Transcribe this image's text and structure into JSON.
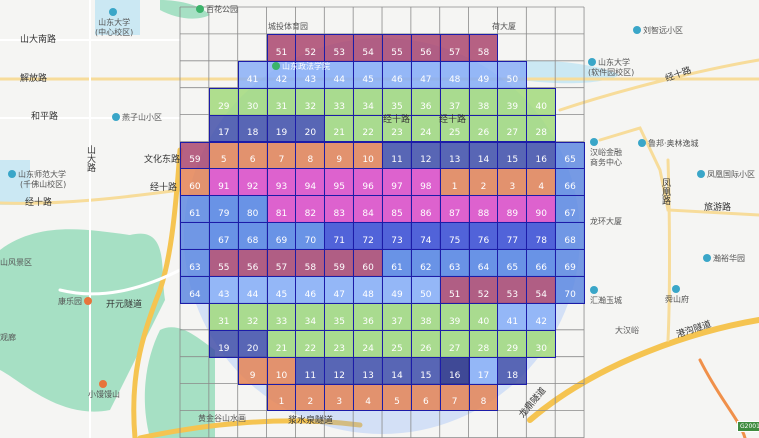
{
  "map_labels": {
    "baihua_park": "百花公园",
    "sdu_central": "山东大学",
    "sdu_central_sub": "(中心校区)",
    "shanda_south_rd": "山大南路",
    "jiefang_rd": "解放路",
    "heping_rd": "和平路",
    "yanzishan": "燕子山小区",
    "shanda_rd": "山大路",
    "wenhua_east_rd": "文化东路",
    "sdnu": "山东师范大学",
    "sdnu_sub": "(千佛山校区)",
    "jingshi_rd": "经十路",
    "scenic": "山风景区",
    "kangle": "康乐园",
    "kaiyuan_tunnel": "开元隧道",
    "guanlang": "观廊",
    "xiaomantou": "小馒馒山",
    "huangjingu": "黄金谷山水画",
    "chengtou": "城投体育园",
    "hehe": "荷大厦",
    "sdu_software": "山东大学",
    "sdu_software_sub": "(软件园校区)",
    "liuzhiyuan": "刘智远小区",
    "lubang": "鲁邦·奥林逸城",
    "hanyu_finance": "汉峪金融",
    "hanyu_finance_sub": "商务中心",
    "fenghuang_intl": "凤凰国际小区",
    "fenghuang_rd": "凤凰路",
    "lvyou_rd": "旅游路",
    "longhuan": "龙环大厦",
    "hanyu_garden": "瀚裕华园",
    "shunshanfu": "舜山府",
    "huihan": "汇瀚玉城",
    "dahanyu": "大汉峪",
    "ganggou_tunnel": "港沟隧道",
    "longding_tunnel": "龙鼎隧道",
    "jiangshuiquan_tunnel": "浆水泉隧道",
    "zhengfa": "山东政法学院",
    "highway_badge": "G2001"
  },
  "colors": {
    "R": "#a8406a",
    "L": "#86adf7",
    "G": "#9fd977",
    "D": "#3c4aa6",
    "O": "#e57f4e",
    "M": "#df45c4",
    "B": "#5181e2",
    "V": "#3446d2",
    "N": "#1d2680",
    "S": "#5a86e0"
  },
  "grid": {
    "columns": 14,
    "rows": [
      [],
      [
        null,
        null,
        null,
        [
          "R",
          "51"
        ],
        [
          "R",
          "52"
        ],
        [
          "R",
          "53"
        ],
        [
          "R",
          "54"
        ],
        [
          "R",
          "55"
        ],
        [
          "R",
          "56"
        ],
        [
          "R",
          "57"
        ],
        [
          "R",
          "58"
        ]
      ],
      [
        null,
        null,
        [
          "L",
          "41"
        ],
        [
          "L",
          "42"
        ],
        [
          "L",
          "43"
        ],
        [
          "L",
          "44"
        ],
        [
          "L",
          "45"
        ],
        [
          "L",
          "46"
        ],
        [
          "L",
          "47"
        ],
        [
          "L",
          "48"
        ],
        [
          "L",
          "49"
        ],
        [
          "L",
          "50"
        ]
      ],
      [
        null,
        [
          "G",
          "29"
        ],
        [
          "G",
          "30"
        ],
        [
          "G",
          "31"
        ],
        [
          "G",
          "32"
        ],
        [
          "G",
          "33"
        ],
        [
          "G",
          "34"
        ],
        [
          "G",
          "35"
        ],
        [
          "G",
          "36"
        ],
        [
          "G",
          "37"
        ],
        [
          "G",
          "38"
        ],
        [
          "G",
          "39"
        ],
        [
          "G",
          "40"
        ]
      ],
      [
        null,
        [
          "D",
          "17"
        ],
        [
          "D",
          "18"
        ],
        [
          "D",
          "19"
        ],
        [
          "D",
          "20"
        ],
        [
          "G",
          "21"
        ],
        [
          "G",
          "22"
        ],
        [
          "G",
          "23"
        ],
        [
          "G",
          "24"
        ],
        [
          "G",
          "25"
        ],
        [
          "G",
          "26"
        ],
        [
          "G",
          "27"
        ],
        [
          "G",
          "28"
        ]
      ],
      [
        [
          "R",
          "59"
        ],
        [
          "O",
          "5"
        ],
        [
          "O",
          "6"
        ],
        [
          "O",
          "7"
        ],
        [
          "O",
          "8"
        ],
        [
          "O",
          "9"
        ],
        [
          "O",
          "10"
        ],
        [
          "D",
          "11"
        ],
        [
          "D",
          "12"
        ],
        [
          "D",
          "13"
        ],
        [
          "D",
          "14"
        ],
        [
          "D",
          "15"
        ],
        [
          "D",
          "16"
        ],
        [
          "S",
          "65"
        ]
      ],
      [
        [
          "O",
          "60"
        ],
        [
          "M",
          "91"
        ],
        [
          "M",
          "92"
        ],
        [
          "M",
          "93"
        ],
        [
          "M",
          "94"
        ],
        [
          "M",
          "95"
        ],
        [
          "M",
          "96"
        ],
        [
          "M",
          "97"
        ],
        [
          "M",
          "98"
        ],
        [
          "O",
          "1"
        ],
        [
          "O",
          "2"
        ],
        [
          "O",
          "3"
        ],
        [
          "O",
          "4"
        ],
        [
          "S",
          "66"
        ]
      ],
      [
        [
          "S",
          "61"
        ],
        [
          "B",
          "79"
        ],
        [
          "B",
          "80"
        ],
        [
          "M",
          "81"
        ],
        [
          "M",
          "82"
        ],
        [
          "M",
          "83"
        ],
        [
          "M",
          "84"
        ],
        [
          "M",
          "85"
        ],
        [
          "M",
          "86"
        ],
        [
          "M",
          "87"
        ],
        [
          "M",
          "88"
        ],
        [
          "M",
          "89"
        ],
        [
          "M",
          "90"
        ],
        [
          "S",
          "67"
        ]
      ],
      [
        [
          "S",
          ""
        ],
        [
          "B",
          "67"
        ],
        [
          "B",
          "68"
        ],
        [
          "B",
          "69"
        ],
        [
          "B",
          "70"
        ],
        [
          "V",
          "71"
        ],
        [
          "V",
          "72"
        ],
        [
          "V",
          "73"
        ],
        [
          "V",
          "74"
        ],
        [
          "V",
          "75"
        ],
        [
          "V",
          "76"
        ],
        [
          "V",
          "77"
        ],
        [
          "V",
          "78"
        ],
        [
          "S",
          "68"
        ]
      ],
      [
        [
          "S",
          "63"
        ],
        [
          "R",
          "55"
        ],
        [
          "R",
          "56"
        ],
        [
          "R",
          "57"
        ],
        [
          "R",
          "58"
        ],
        [
          "R",
          "59"
        ],
        [
          "R",
          "60"
        ],
        [
          "B",
          "61"
        ],
        [
          "B",
          "62"
        ],
        [
          "B",
          "63"
        ],
        [
          "B",
          "64"
        ],
        [
          "B",
          "65"
        ],
        [
          "B",
          "66"
        ],
        [
          "S",
          "69"
        ]
      ],
      [
        [
          "S",
          "64"
        ],
        [
          "L",
          "43"
        ],
        [
          "L",
          "44"
        ],
        [
          "L",
          "45"
        ],
        [
          "L",
          "46"
        ],
        [
          "L",
          "47"
        ],
        [
          "L",
          "48"
        ],
        [
          "L",
          "49"
        ],
        [
          "L",
          "50"
        ],
        [
          "R",
          "51"
        ],
        [
          "R",
          "52"
        ],
        [
          "R",
          "53"
        ],
        [
          "R",
          "54"
        ],
        [
          "S",
          "70"
        ]
      ],
      [
        null,
        [
          "G",
          "31"
        ],
        [
          "G",
          "32"
        ],
        [
          "G",
          "33"
        ],
        [
          "G",
          "34"
        ],
        [
          "G",
          "35"
        ],
        [
          "G",
          "36"
        ],
        [
          "G",
          "37"
        ],
        [
          "G",
          "38"
        ],
        [
          "G",
          "39"
        ],
        [
          "G",
          "40"
        ],
        [
          "L",
          "41"
        ],
        [
          "L",
          "42"
        ]
      ],
      [
        null,
        [
          "D",
          "19"
        ],
        [
          "D",
          "20"
        ],
        [
          "G",
          "21"
        ],
        [
          "G",
          "22"
        ],
        [
          "G",
          "23"
        ],
        [
          "G",
          "24"
        ],
        [
          "G",
          "25"
        ],
        [
          "G",
          "26"
        ],
        [
          "G",
          "27"
        ],
        [
          "G",
          "28"
        ],
        [
          "G",
          "29"
        ],
        [
          "G",
          "30"
        ]
      ],
      [
        null,
        null,
        [
          "O",
          "9"
        ],
        [
          "O",
          "10"
        ],
        [
          "D",
          "11"
        ],
        [
          "D",
          "12"
        ],
        [
          "D",
          "13"
        ],
        [
          "D",
          "14"
        ],
        [
          "D",
          "15"
        ],
        [
          "N",
          "16"
        ],
        [
          "L",
          "17"
        ],
        [
          "D",
          "18"
        ]
      ],
      [
        null,
        null,
        null,
        [
          "O",
          "1"
        ],
        [
          "O",
          "2"
        ],
        [
          "O",
          "3"
        ],
        [
          "O",
          "4"
        ],
        [
          "O",
          "5"
        ],
        [
          "O",
          "6"
        ],
        [
          "O",
          "7"
        ],
        [
          "O",
          "8"
        ]
      ],
      []
    ]
  }
}
